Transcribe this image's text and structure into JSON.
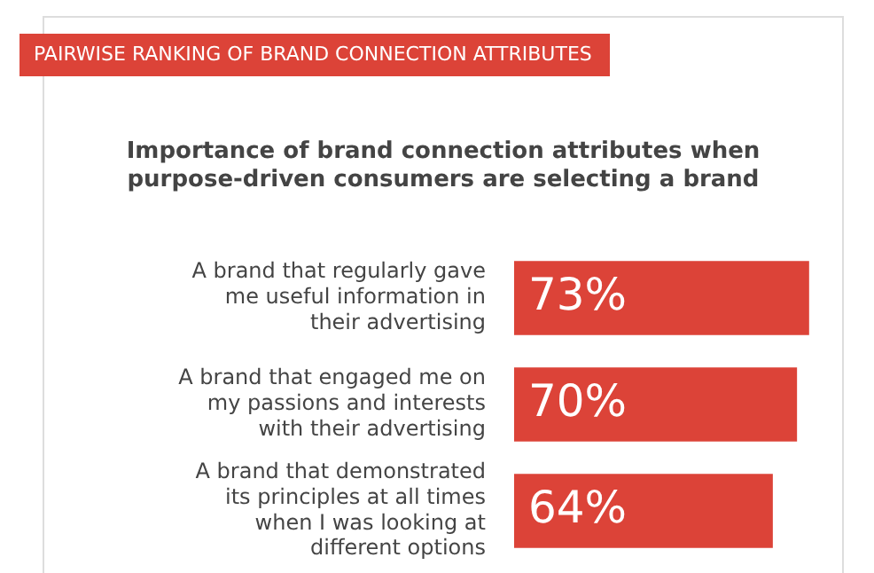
{
  "chart_data": {
    "type": "bar",
    "orientation": "horizontal",
    "title": "PAIRWISE RANKING OF BRAND CONNECTION ATTRIBUTES",
    "subtitle": "Importance of brand connection attributes when purpose-driven consumers are selecting a brand",
    "categories": [
      "A brand that regularly gave me useful information in their advertising",
      "A brand that engaged me on my passions and interests with their advertising",
      "A brand that demonstrated its principles at all times when I was looking at different options"
    ],
    "values": [
      73,
      70,
      64
    ],
    "color": "#dc4338",
    "value_labels": [
      "73%",
      "70%",
      "64%"
    ],
    "legend": false
  }
}
